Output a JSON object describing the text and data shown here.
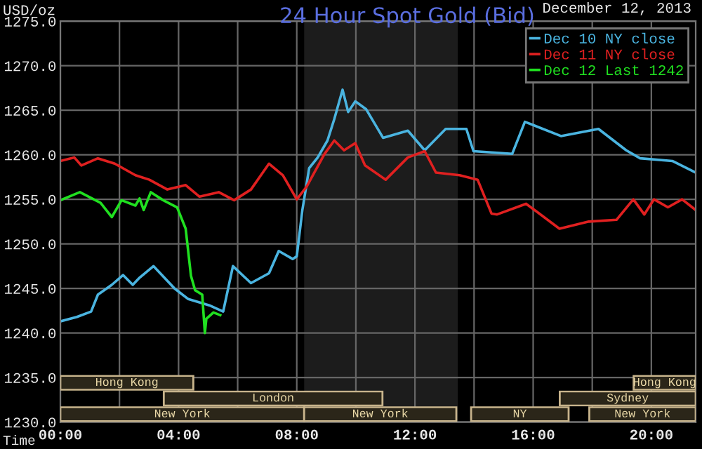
{
  "chart_data": [
    {
      "type": "line",
      "title": "24 Hour Spot Gold (Bid)",
      "subtitle": "December 12, 2013",
      "xlabel": "Time",
      "ylabel": "USD/oz",
      "xlim": [
        0,
        21.5
      ],
      "ylim": [
        1230,
        1275
      ],
      "xticks": [
        {
          "value": 0,
          "label": "00:00"
        },
        {
          "value": 2,
          "label": null
        },
        {
          "value": 4,
          "label": "04:00"
        },
        {
          "value": 6,
          "label": null
        },
        {
          "value": 8,
          "label": "08:00"
        },
        {
          "value": 10,
          "label": null
        },
        {
          "value": 12,
          "label": "12:00"
        },
        {
          "value": 14,
          "label": null
        },
        {
          "value": 16,
          "label": "16:00"
        },
        {
          "value": 18,
          "label": null
        },
        {
          "value": 20,
          "label": "20:00"
        }
      ],
      "yticks": [
        {
          "value": 1230,
          "label": "1230.0"
        },
        {
          "value": 1235,
          "label": "1235.0"
        },
        {
          "value": 1240,
          "label": "1240.0"
        },
        {
          "value": 1245,
          "label": "1245.0"
        },
        {
          "value": 1250,
          "label": "1250.0"
        },
        {
          "value": 1255,
          "label": "1255.0"
        },
        {
          "value": 1260,
          "label": "1260.0"
        },
        {
          "value": 1265,
          "label": "1265.0"
        },
        {
          "value": 1270,
          "label": "1270.0"
        },
        {
          "value": 1275,
          "label": "1275.0"
        }
      ],
      "grid": true,
      "legend": "top right",
      "marker": "none",
      "line_style": "solid",
      "series": [
        {
          "name": "Dec 10 NY close",
          "color": "#4ab4e0",
          "x": [
            0,
            0.56,
            1.04,
            1.27,
            1.74,
            2.12,
            2.45,
            2.68,
            3.15,
            3.86,
            4.33,
            5.04,
            5.51,
            5.84,
            6.45,
            7.06,
            7.39,
            7.86,
            8.0,
            8.19,
            8.42,
            8.71,
            9.04,
            9.27,
            9.55,
            9.74,
            9.98,
            10.35,
            10.92,
            11.76,
            12.33,
            13.04,
            13.74,
            13.98,
            15.29,
            15.72,
            16.94,
            18.21,
            19.15,
            19.62,
            20.71,
            21.5
          ],
          "values": [
            1241.3,
            1241.8,
            1242.4,
            1244.3,
            1245.4,
            1246.5,
            1245.4,
            1246.2,
            1247.5,
            1245.0,
            1243.8,
            1243.1,
            1242.4,
            1247.5,
            1245.6,
            1246.7,
            1249.2,
            1248.3,
            1248.6,
            1253.8,
            1258.5,
            1259.7,
            1261.6,
            1264.0,
            1267.3,
            1264.8,
            1266.0,
            1265.1,
            1261.9,
            1262.7,
            1260.5,
            1262.9,
            1262.9,
            1260.4,
            1260.1,
            1263.7,
            1262.1,
            1262.9,
            1260.5,
            1259.6,
            1259.3,
            1258.0
          ]
        },
        {
          "name": "Dec 11 NY close",
          "color": "#e02020",
          "x": [
            0,
            0.47,
            0.71,
            1.27,
            1.84,
            2.54,
            3.01,
            3.62,
            4.24,
            4.71,
            5.36,
            5.88,
            6.45,
            7.06,
            7.53,
            8.0,
            8.33,
            8.94,
            9.27,
            9.6,
            9.98,
            10.31,
            11.01,
            11.76,
            12.33,
            12.71,
            13.51,
            14.12,
            14.59,
            14.78,
            15.76,
            16.89,
            17.88,
            18.82,
            19.39,
            19.76,
            20.09,
            20.56,
            21.04,
            21.5
          ],
          "values": [
            1259.3,
            1259.7,
            1258.8,
            1259.6,
            1259.0,
            1257.7,
            1257.2,
            1256.1,
            1256.6,
            1255.3,
            1255.8,
            1254.9,
            1256.1,
            1259.0,
            1257.7,
            1255.0,
            1256.4,
            1260.1,
            1261.6,
            1260.5,
            1261.3,
            1258.8,
            1257.2,
            1259.7,
            1260.4,
            1258.0,
            1257.7,
            1257.2,
            1253.4,
            1253.3,
            1254.5,
            1251.7,
            1252.5,
            1252.7,
            1255.0,
            1253.3,
            1255.0,
            1254.1,
            1255.0,
            1253.8
          ]
        },
        {
          "name": "Dec 12 Last 1242",
          "color": "#20e020",
          "x": [
            0,
            0.66,
            1.36,
            1.74,
            2.07,
            2.54,
            2.68,
            2.82,
            3.06,
            3.48,
            3.95,
            4.24,
            4.42,
            4.56,
            4.8,
            4.89,
            4.94,
            5.18,
            5.41
          ],
          "values": [
            1254.9,
            1255.8,
            1254.6,
            1253.0,
            1254.9,
            1254.3,
            1255.1,
            1253.8,
            1255.8,
            1254.9,
            1254.1,
            1251.7,
            1246.4,
            1244.8,
            1244.3,
            1240.0,
            1241.6,
            1242.3,
            1242.0
          ]
        }
      ],
      "bands": [
        {
          "axis": "x",
          "from": 8.25,
          "to": 13.45,
          "color": "#1c1c1c"
        }
      ]
    },
    {
      "type": "bar",
      "orientation": "horizontal",
      "categories": [
        null
      ],
      "xlim": [
        0,
        21.5
      ],
      "tick_labels": false,
      "series": [
        {
          "color": "#2b2619",
          "base": [
            0
          ],
          "values": [
            4.5
          ],
          "value_labels": [
            "Hong Kong"
          ]
        },
        {
          "color": "#2b2619",
          "base": [
            19.4
          ],
          "values": [
            2.1
          ],
          "value_labels": [
            "Hong Kong"
          ]
        }
      ]
    },
    {
      "type": "bar",
      "orientation": "horizontal",
      "categories": [
        null
      ],
      "xlim": [
        0,
        21.5
      ],
      "tick_labels": false,
      "series": [
        {
          "color": "#2b2619",
          "base": [
            3.5
          ],
          "values": [
            7.4
          ],
          "value_labels": [
            "London"
          ]
        },
        {
          "color": "#2b2619",
          "base": [
            16.9
          ],
          "values": [
            4.6
          ],
          "value_labels": [
            "Sydney"
          ]
        }
      ]
    },
    {
      "type": "bar",
      "orientation": "horizontal",
      "categories": [
        null
      ],
      "xlim": [
        0,
        21.5
      ],
      "tick_labels": false,
      "series": [
        {
          "color": "#2b2619",
          "base": [
            0
          ],
          "values": [
            8.25
          ],
          "value_labels": [
            "New York"
          ]
        },
        {
          "color": "#2b2619",
          "base": [
            8.25
          ],
          "values": [
            5.15
          ],
          "value_labels": [
            "New York"
          ]
        },
        {
          "color": "#2b2619",
          "base": [
            13.9
          ],
          "values": [
            3.3
          ],
          "value_labels": [
            "NY"
          ]
        },
        {
          "color": "#2b2619",
          "base": [
            17.9
          ],
          "values": [
            3.6
          ],
          "value_labels": [
            "New York"
          ]
        }
      ]
    }
  ]
}
